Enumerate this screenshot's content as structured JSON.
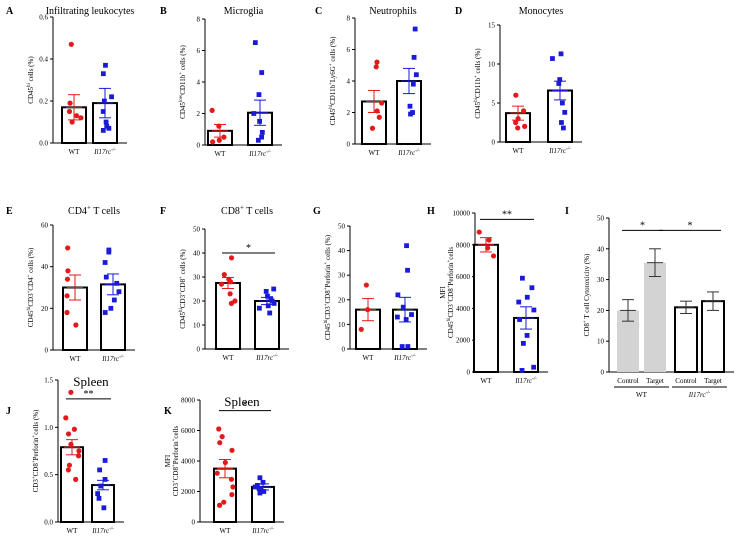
{
  "figure_title": "Immune cell quantification panels",
  "colors": {
    "wt": "#e31a1c",
    "ko": "#1a1ad9",
    "bar_fill": "#ffffff",
    "bar_fill_grey": "#d3d3d3",
    "axis": "#000000"
  },
  "chart_data": [
    {
      "label": "A",
      "title": "Infiltrating leukocytes",
      "type": "bar",
      "ylabel_parts": [
        {
          "t": "CD45"
        },
        {
          "t": "hi",
          "sup": true
        },
        {
          "t": " cells (%)"
        }
      ],
      "ylim": [
        0,
        0.6
      ],
      "yticks": [
        "0.0",
        "0.2",
        "0.4",
        "0.6"
      ],
      "ytick_values": [
        0,
        0.2,
        0.4,
        0.6
      ],
      "categories": [
        "WT",
        "Il17rc-/-"
      ],
      "means": [
        0.17,
        0.19
      ],
      "sem": [
        0.06,
        0.07
      ],
      "points": [
        [
          0.47,
          0.15,
          0.12,
          0.1,
          0.13,
          0.19
        ],
        [
          0.37,
          0.33,
          0.22,
          0.2,
          0.15,
          0.1,
          0.08,
          0.07,
          0.06
        ]
      ]
    },
    {
      "label": "B",
      "title": "Microglia",
      "type": "bar",
      "ylabel_parts": [
        {
          "t": "CD45"
        },
        {
          "t": "low",
          "sup": true
        },
        {
          "t": "CD11b"
        },
        {
          "t": "+",
          "sup": true
        },
        {
          "t": " cells (%)"
        }
      ],
      "ylim": [
        0,
        8
      ],
      "yticks": [
        "0",
        "2",
        "4",
        "6",
        "8"
      ],
      "ytick_values": [
        0,
        2,
        4,
        6,
        8
      ],
      "categories": [
        "WT",
        "Il17rc-/-"
      ],
      "means": [
        0.9,
        2.05
      ],
      "sem": [
        0.4,
        0.8
      ],
      "points": [
        [
          2.2,
          1.2,
          0.3,
          0.2,
          0.5
        ],
        [
          6.5,
          4.6,
          3.2,
          2.0,
          1.5,
          0.8,
          0.5,
          0.3
        ]
      ]
    },
    {
      "label": "C",
      "title": "Neutrophils",
      "type": "bar",
      "ylabel_parts": [
        {
          "t": "CD45"
        },
        {
          "t": "hi",
          "sup": true
        },
        {
          "t": "CD11b"
        },
        {
          "t": "+",
          "sup": true
        },
        {
          "t": "Ly6G"
        },
        {
          "t": "+",
          "sup": true
        },
        {
          "t": " cells (%)"
        }
      ],
      "ylim": [
        0,
        8
      ],
      "yticks": [
        "0",
        "2",
        "4",
        "6",
        "8"
      ],
      "ytick_values": [
        0,
        2,
        4,
        6,
        8
      ],
      "categories": [
        "WT",
        "Il17rc-/-"
      ],
      "means": [
        2.7,
        4.0
      ],
      "sem": [
        0.7,
        0.8
      ],
      "points": [
        [
          5.2,
          4.9,
          2.6,
          2.1,
          1.7,
          1.0
        ],
        [
          7.3,
          5.5,
          4.4,
          3.8,
          2.4,
          2.0,
          1.9
        ]
      ]
    },
    {
      "label": "D",
      "title": "Monocytes",
      "type": "bar",
      "ylabel_parts": [
        {
          "t": "CD45"
        },
        {
          "t": "hi",
          "sup": true
        },
        {
          "t": "CD11b"
        },
        {
          "t": "+",
          "sup": true
        },
        {
          "t": " cells (%)"
        }
      ],
      "ylim": [
        0,
        15
      ],
      "yticks": [
        "0",
        "5",
        "10",
        "15"
      ],
      "ytick_values": [
        0,
        5,
        10,
        15
      ],
      "categories": [
        "WT",
        "Il17rc-/-"
      ],
      "means": [
        3.7,
        6.6
      ],
      "sem": [
        0.9,
        1.2
      ],
      "points": [
        [
          6.0,
          4.0,
          3.0,
          2.5,
          2.0,
          1.8
        ],
        [
          11.3,
          10.7,
          8.0,
          7.5,
          5.0,
          3.8,
          2.5,
          1.8
        ]
      ]
    },
    {
      "label": "E",
      "title": "CD4+ T cells",
      "title_parts": [
        {
          "t": "CD4"
        },
        {
          "t": "+",
          "sup": true
        },
        {
          "t": " T cells"
        }
      ],
      "type": "bar",
      "ylabel_parts": [
        {
          "t": "CD45"
        },
        {
          "t": "hi",
          "sup": true
        },
        {
          "t": "CD3"
        },
        {
          "t": "+",
          "sup": true
        },
        {
          "t": "CD4"
        },
        {
          "t": "+",
          "sup": true
        },
        {
          "t": " cells (%)"
        }
      ],
      "ylim": [
        0,
        60
      ],
      "yticks": [
        "0",
        "20",
        "40",
        "60"
      ],
      "ytick_values": [
        0,
        20,
        40,
        60
      ],
      "categories": [
        "WT",
        "Il17rc-/-"
      ],
      "means": [
        30,
        31.5
      ],
      "sem": [
        6,
        5
      ],
      "points": [
        [
          49,
          38,
          34,
          26,
          18,
          12
        ],
        [
          48,
          47,
          42,
          35,
          32,
          28,
          24,
          20,
          18
        ]
      ]
    },
    {
      "label": "F",
      "title": "CD8+ T cells",
      "title_parts": [
        {
          "t": "CD8"
        },
        {
          "t": "+",
          "sup": true
        },
        {
          "t": " T cells"
        }
      ],
      "type": "bar",
      "ylabel_parts": [
        {
          "t": "CD45"
        },
        {
          "t": "hi",
          "sup": true
        },
        {
          "t": "CD3"
        },
        {
          "t": "+",
          "sup": true
        },
        {
          "t": "CD8"
        },
        {
          "t": "+",
          "sup": true
        },
        {
          "t": " cells (%)"
        }
      ],
      "ylim": [
        0,
        50
      ],
      "yticks": [
        "0",
        "10",
        "20",
        "30",
        "40",
        "50"
      ],
      "ytick_values": [
        0,
        10,
        20,
        30,
        40,
        50
      ],
      "categories": [
        "WT",
        "Il17rc-/-"
      ],
      "means": [
        27.5,
        20
      ],
      "sem": [
        2.3,
        1.5
      ],
      "significance": [
        {
          "text": "*",
          "from": 0,
          "to": 1,
          "y": 40
        }
      ],
      "points": [
        [
          38,
          31,
          29,
          28,
          27,
          23,
          20,
          19
        ],
        [
          25,
          24,
          22,
          21,
          20,
          19,
          18,
          17,
          15
        ]
      ]
    },
    {
      "label": "G",
      "title": "",
      "type": "bar",
      "ylabel_parts": [
        {
          "t": "CD45"
        },
        {
          "t": "hi",
          "sup": true
        },
        {
          "t": "CD3"
        },
        {
          "t": "+",
          "sup": true
        },
        {
          "t": "CD8"
        },
        {
          "t": "+",
          "sup": true
        },
        {
          "t": "Perforin"
        },
        {
          "t": "+",
          "sup": true
        },
        {
          "t": " cells (%)"
        }
      ],
      "ylim": [
        0,
        50
      ],
      "yticks": [
        "0",
        "10",
        "20",
        "30",
        "40",
        "50"
      ],
      "ytick_values": [
        0,
        10,
        20,
        30,
        40,
        50
      ],
      "categories": [
        "WT",
        "Il17rc-/-"
      ],
      "means": [
        16,
        16
      ],
      "sem": [
        4.5,
        5
      ],
      "points": [
        [
          26,
          16,
          8
        ],
        [
          42,
          32,
          22,
          17,
          14,
          13,
          12,
          1,
          1
        ]
      ]
    },
    {
      "label": "H",
      "title": "",
      "type": "bar",
      "ylabel_lines": [
        [
          {
            "t": "MFI"
          }
        ],
        [
          {
            "t": "CD45"
          },
          {
            "t": "hi",
            "sup": true
          },
          {
            "t": "CD3"
          },
          {
            "t": "+",
            "sup": true
          },
          {
            "t": "CD8"
          },
          {
            "t": "+",
            "sup": true
          },
          {
            "t": "Perforin"
          },
          {
            "t": "+",
            "sup": true
          },
          {
            "t": "cells"
          }
        ]
      ],
      "ylim": [
        0,
        10000
      ],
      "yticks": [
        "0",
        "2000",
        "4000",
        "6000",
        "8000",
        "10000"
      ],
      "ytick_values": [
        0,
        2000,
        4000,
        6000,
        8000,
        10000
      ],
      "categories": [
        "WT",
        "Il17rc-/-"
      ],
      "means": [
        8000,
        3400
      ],
      "sem": [
        450,
        700
      ],
      "significance": [
        {
          "text": "**",
          "from": 0,
          "to": 1,
          "y": 9600
        }
      ],
      "points": [
        [
          8800,
          8300,
          7800,
          7300
        ],
        [
          5900,
          5300,
          4700,
          4400,
          3900,
          3300,
          2300,
          1800,
          300,
          100
        ]
      ]
    },
    {
      "label": "I",
      "title": "",
      "type": "bar",
      "ylabel_parts": [
        {
          "t": "CD8"
        },
        {
          "t": "+",
          "sup": true
        },
        {
          "t": " T cell Cytotoxicity (%)"
        }
      ],
      "ylim": [
        0,
        50
      ],
      "yticks": [
        "0",
        "10",
        "20",
        "30",
        "40",
        "50"
      ],
      "ytick_values": [
        0,
        10,
        20,
        30,
        40,
        50
      ],
      "categories": [
        "Control",
        "Target",
        "Control",
        "Target"
      ],
      "groups": [
        {
          "name": "WT",
          "italic": false
        },
        {
          "name": "Il17rc-/-",
          "italic": true
        }
      ],
      "means": [
        20,
        35.5,
        21,
        23
      ],
      "sem": [
        3.5,
        4.5,
        2,
        3
      ],
      "significance": [
        {
          "text": "*",
          "from": 0,
          "to": 1,
          "y": 46
        },
        {
          "text": "*",
          "from": 1,
          "to": 3,
          "y": 46
        }
      ],
      "points": []
    },
    {
      "label": "J",
      "title": "Spleen",
      "type": "bar",
      "big_title": true,
      "ylabel_parts": [
        {
          "t": "CD3"
        },
        {
          "t": "+",
          "sup": true
        },
        {
          "t": "CD8"
        },
        {
          "t": "+",
          "sup": true
        },
        {
          "t": "Perforin"
        },
        {
          "t": "+",
          "sup": true
        },
        {
          "t": "cells (%)"
        }
      ],
      "ylim": [
        0,
        1.5
      ],
      "yticks": [
        "0.0",
        "0.5",
        "1.0",
        "1.5"
      ],
      "ytick_values": [
        0,
        0.5,
        1.0,
        1.5
      ],
      "categories": [
        "WT",
        "Il17rc-/-"
      ],
      "means": [
        0.79,
        0.39
      ],
      "sem": [
        0.08,
        0.05
      ],
      "significance": [
        {
          "text": "**",
          "from": 0,
          "to": 1,
          "y": 1.3
        }
      ],
      "points": [
        [
          1.37,
          1.1,
          0.98,
          0.93,
          0.82,
          0.75,
          0.7,
          0.6,
          0.55,
          0.45
        ],
        [
          0.65,
          0.55,
          0.45,
          0.38,
          0.3,
          0.25,
          0.15
        ]
      ]
    },
    {
      "label": "K",
      "title": "Spleen",
      "type": "bar",
      "big_title": true,
      "ylabel_lines": [
        [
          {
            "t": "MFI"
          }
        ],
        [
          {
            "t": "CD3"
          },
          {
            "t": "+",
            "sup": true
          },
          {
            "t": "CD8"
          },
          {
            "t": "+",
            "sup": true
          },
          {
            "t": "Perforin"
          },
          {
            "t": "+",
            "sup": true
          },
          {
            "t": "cells"
          }
        ]
      ],
      "ylim": [
        0,
        8000
      ],
      "yticks": [
        "0",
        "2000",
        "4000",
        "6000",
        "8000"
      ],
      "ytick_values": [
        0,
        2000,
        4000,
        6000,
        8000
      ],
      "categories": [
        "WT",
        "Il17rc-/-"
      ],
      "means": [
        3500,
        2300
      ],
      "sem": [
        600,
        200
      ],
      "significance": [
        {
          "text": "*",
          "from": 0,
          "to": 1,
          "y": 7300
        }
      ],
      "points": [
        [
          6100,
          5600,
          5200,
          4700,
          3900,
          3200,
          2800,
          2300,
          1800,
          1300,
          1100
        ],
        [
          2900,
          2600,
          2400,
          2300,
          2200,
          2100,
          2000,
          1900
        ]
      ]
    }
  ]
}
